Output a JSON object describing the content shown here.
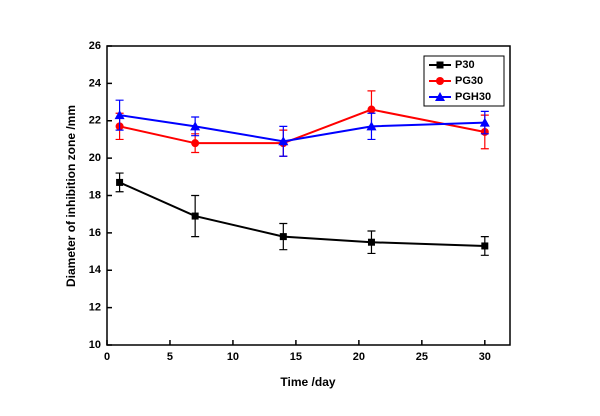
{
  "chart_data": {
    "type": "line",
    "x_label": "Time /day",
    "y_label": "Diameter of inhibition zone /mm",
    "x": [
      1,
      7,
      14,
      21,
      30
    ],
    "series": [
      {
        "name": "P30",
        "color": "#000000",
        "marker": "square",
        "values": [
          18.7,
          16.9,
          15.8,
          15.5,
          15.3
        ],
        "errors": [
          0.5,
          1.1,
          0.7,
          0.6,
          0.5
        ]
      },
      {
        "name": "PG30",
        "color": "#ff0000",
        "marker": "circle",
        "values": [
          21.7,
          20.8,
          20.8,
          22.6,
          21.4
        ],
        "errors": [
          0.7,
          0.5,
          0.7,
          1.0,
          0.9
        ]
      },
      {
        "name": "PGH30",
        "color": "#0000ff",
        "marker": "triangle",
        "values": [
          22.3,
          21.7,
          20.9,
          21.7,
          21.9
        ],
        "errors": [
          0.8,
          0.5,
          0.8,
          0.7,
          0.6
        ]
      }
    ],
    "xlim": [
      0,
      32
    ],
    "xticks": [
      0,
      5,
      10,
      15,
      20,
      25,
      30
    ],
    "ylim": [
      10,
      26
    ],
    "yticks": [
      10,
      12,
      14,
      16,
      18,
      20,
      22,
      24,
      26
    ],
    "legend": "upper right"
  }
}
